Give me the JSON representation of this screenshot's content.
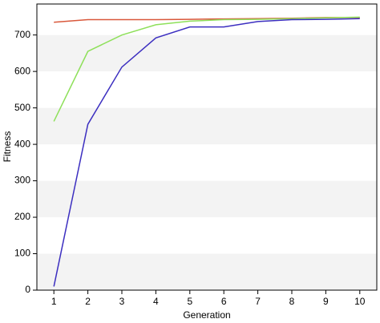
{
  "chart_data": {
    "type": "line",
    "xlabel": "Generation",
    "ylabel": "Fitness",
    "x": [
      1,
      2,
      3,
      4,
      5,
      6,
      7,
      8,
      9,
      10
    ],
    "series": [
      {
        "color": "#d9583b",
        "values": [
          735,
          742,
          742,
          742,
          743,
          744,
          745,
          746,
          748,
          748
        ]
      },
      {
        "color": "#8ee05a",
        "values": [
          463,
          655,
          700,
          728,
          738,
          742,
          743,
          745,
          747,
          749
        ]
      },
      {
        "color": "#3c2fc0",
        "values": [
          10,
          455,
          612,
          692,
          722,
          722,
          737,
          742,
          743,
          745
        ]
      }
    ],
    "xlim": [
      0.5,
      10.5
    ],
    "xticks": [
      1,
      2,
      3,
      4,
      5,
      6,
      7,
      8,
      9,
      10
    ],
    "ylim": [
      0,
      785
    ],
    "yticks": [
      0,
      100,
      200,
      300,
      400,
      500,
      600,
      700
    ],
    "background_bands": [
      "#f3f3f3",
      "#ffffff"
    ]
  }
}
